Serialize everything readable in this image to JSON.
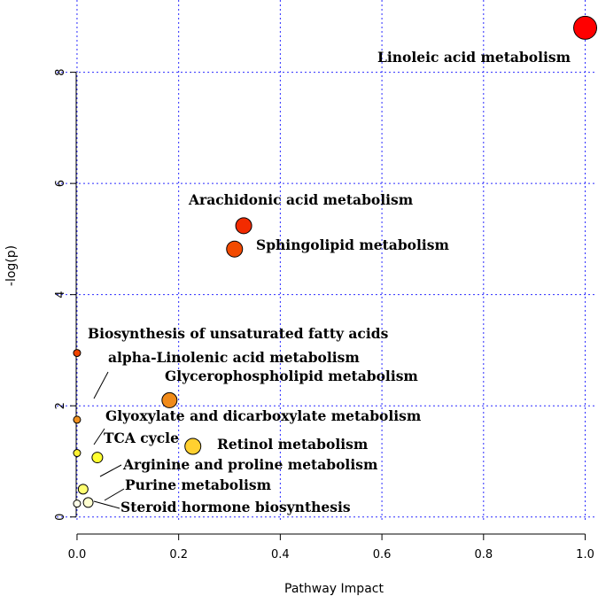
{
  "chart_data": {
    "type": "scatter",
    "xlabel": "Pathway Impact",
    "ylabel": "-log(p)",
    "xlim": [
      -0.04,
      1.02
    ],
    "ylim": [
      -0.1,
      9.3
    ],
    "x_ticks": [
      0.0,
      0.2,
      0.4,
      0.6,
      0.8,
      1.0
    ],
    "x_tick_labels": [
      "0.0",
      "0.2",
      "0.4",
      "0.6",
      "0.8",
      "1.0"
    ],
    "y_ticks": [
      0,
      2,
      4,
      6,
      8
    ],
    "y_tick_labels": [
      "0",
      "2",
      "4",
      "6",
      "8"
    ],
    "grid": true,
    "points": [
      {
        "label": "Linoleic acid metabolism",
        "x": 1.0,
        "y": 8.8,
        "size": 13,
        "color": "#ff0000"
      },
      {
        "label": "Arachidonic acid metabolism",
        "x": 0.328,
        "y": 5.24,
        "size": 9,
        "color": "#f22b00"
      },
      {
        "label": "Sphingolipid metabolism",
        "x": 0.31,
        "y": 4.82,
        "size": 9,
        "color": "#f24a00"
      },
      {
        "label": "Biosynthesis of unsaturated fatty acids",
        "x": 0.0,
        "y": 2.95,
        "size": 4,
        "color": "#f04400"
      },
      {
        "label": "alpha-Linolenic acid metabolism",
        "x": 0.0,
        "y": 1.75,
        "size": 4,
        "color": "#f0901f"
      },
      {
        "label": "Glycerophospholipid metabolism",
        "x": 0.182,
        "y": 2.1,
        "size": 8.5,
        "color": "#f08a1a"
      },
      {
        "label": "Glyoxylate and dicarboxylate metabolism",
        "x": 0.0,
        "y": 1.15,
        "size": 4,
        "color": "#fff233"
      },
      {
        "label": "TCA cycle",
        "x": 0.04,
        "y": 1.07,
        "size": 6,
        "color": "#ffff30"
      },
      {
        "label": "Retinol metabolism",
        "x": 0.228,
        "y": 1.27,
        "size": 9,
        "color": "#ffd030"
      },
      {
        "label": "Arginine and proline metabolism",
        "x": 0.012,
        "y": 0.5,
        "size": 5.5,
        "color": "#ffff70"
      },
      {
        "label": "Purine metabolism",
        "x": 0.022,
        "y": 0.26,
        "size": 5.5,
        "color": "#ffffd0"
      },
      {
        "label": "Steroid hormone biosynthesis",
        "x": 0.0,
        "y": 0.24,
        "size": 4,
        "color": "#ffffe8"
      }
    ]
  }
}
